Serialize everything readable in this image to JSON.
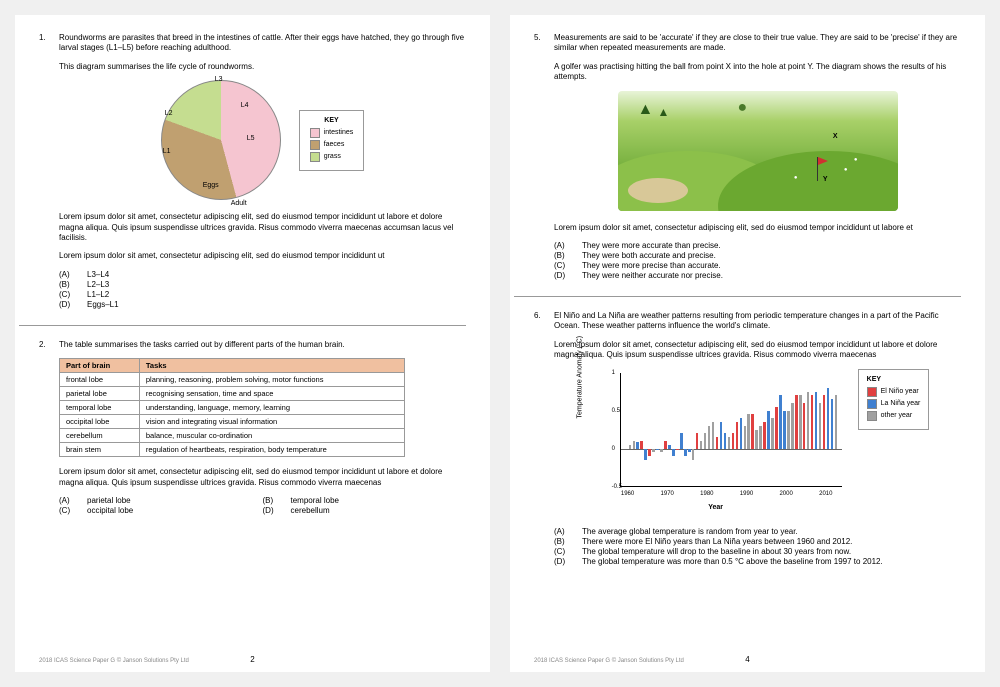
{
  "footer": {
    "copyright": "2018 ICAS Science Paper G © Janson Solutions Pty Ltd",
    "page_left": "2",
    "page_right": "4"
  },
  "q1": {
    "num": "1.",
    "intro": "Roundworms are parasites that breed in the intestines of cattle. After their eggs have hatched, they go through five larval stages (L1–L5) before reaching adulthood.",
    "caption": "This diagram summarises the life cycle of roundworms.",
    "pie": {
      "slices": [
        {
          "color": "#f5c5d0",
          "deg_end": 165,
          "label": "intestines"
        },
        {
          "color": "#c0a070",
          "deg_end": 290,
          "label": "faeces"
        },
        {
          "color": "#c5dd90",
          "deg_end": 360,
          "label": "grass"
        }
      ],
      "labels": [
        "L3",
        "L4",
        "L5",
        "Adult",
        "Eggs",
        "L1",
        "L2"
      ],
      "key_title": "KEY"
    },
    "lorem1": "Lorem ipsum dolor sit amet, consectetur adipiscing elit, sed do eiusmod tempor incididunt ut labore et dolore magna aliqua. Quis ipsum suspendisse ultrices gravida. Risus commodo viverra maecenas accumsan lacus vel facilisis.",
    "lorem2": "Lorem ipsum dolor sit amet, consectetur adipiscing elit, sed do eiusmod tempor incididunt ut",
    "opts": [
      {
        "l": "(A)",
        "t": "L3–L4"
      },
      {
        "l": "(B)",
        "t": "L2–L3"
      },
      {
        "l": "(C)",
        "t": "L1–L2"
      },
      {
        "l": "(D)",
        "t": "Eggs–L1"
      }
    ]
  },
  "q2": {
    "num": "2.",
    "intro": "The table summarises the tasks carried out by different parts of the human brain.",
    "headers": [
      "Part of brain",
      "Tasks"
    ],
    "rows": [
      [
        "frontal lobe",
        "planning, reasoning, problem solving, motor functions"
      ],
      [
        "parietal lobe",
        "recognising sensation, time and space"
      ],
      [
        "temporal lobe",
        "understanding, language, memory, learning"
      ],
      [
        "occipital lobe",
        "vision and integrating visual information"
      ],
      [
        "cerebellum",
        "balance, muscular co-ordination"
      ],
      [
        "brain stem",
        "regulation of heartbeats, respiration, body temperature"
      ]
    ],
    "lorem": "Lorem ipsum dolor sit amet, consectetur adipiscing elit, sed do eiusmod tempor incididunt ut labore et dolore magna aliqua. Quis ipsum suspendisse ultrices gravida. Risus commodo viverra maecenas",
    "opts": [
      {
        "l": "(A)",
        "t": "parietal lobe"
      },
      {
        "l": "(B)",
        "t": "temporal lobe"
      },
      {
        "l": "(C)",
        "t": "occipital lobe"
      },
      {
        "l": "(D)",
        "t": "cerebellum"
      }
    ]
  },
  "q5": {
    "num": "5.",
    "intro": "Measurements are said to be 'accurate' if they are close to their true value. They are said to be 'precise' if they are similar when repeated measurements are made.",
    "caption": "A golfer was practising hitting the ball from point X into the hole at point Y. The diagram shows the results of his attempts.",
    "lorem": "Lorem ipsum dolor sit amet, consectetur adipiscing elit, sed do eiusmod tempor incididunt ut labore et",
    "opts": [
      {
        "l": "(A)",
        "t": "They were more accurate than precise."
      },
      {
        "l": "(B)",
        "t": "They were both accurate and precise."
      },
      {
        "l": "(C)",
        "t": "They were more precise than accurate."
      },
      {
        "l": "(D)",
        "t": "They were neither accurate nor precise."
      }
    ]
  },
  "q6": {
    "num": "6.",
    "intro": "El Niño and La Niña are weather patterns resulting from periodic temperature changes in a part of the Pacific Ocean. These weather patterns influence the world's climate.",
    "lorem": "Lorem ipsum dolor sit amet, consectetur adipiscing elit, sed do eiusmod tempor incididunt ut labore et dolore magna aliqua. Quis ipsum suspendisse ultrices gravida. Risus commodo viverra maecenas",
    "chart": {
      "ylabel": "Temperature Anomaly (°C)",
      "xlabel": "Year",
      "ylim": [
        -0.5,
        1.0
      ],
      "yticks": [
        -0.5,
        0,
        0.5,
        1
      ],
      "xlim": [
        1958,
        2014
      ],
      "xticks": [
        1960,
        1970,
        1980,
        1990,
        2000,
        2010
      ],
      "colors": {
        "elnino": "#e04040",
        "lanina": "#4080d0",
        "other": "#a0a0a0"
      },
      "key_title": "KEY",
      "series_labels": [
        "El Niño year",
        "La Niña year",
        "other year"
      ],
      "bars": [
        {
          "y": 1960,
          "v": 0.05,
          "c": "other"
        },
        {
          "y": 1961,
          "v": 0.1,
          "c": "other"
        },
        {
          "y": 1962,
          "v": 0.08,
          "c": "lanina"
        },
        {
          "y": 1963,
          "v": 0.1,
          "c": "elnino"
        },
        {
          "y": 1964,
          "v": -0.15,
          "c": "lanina"
        },
        {
          "y": 1965,
          "v": -0.1,
          "c": "elnino"
        },
        {
          "y": 1966,
          "v": -0.05,
          "c": "other"
        },
        {
          "y": 1967,
          "v": 0.0,
          "c": "lanina"
        },
        {
          "y": 1968,
          "v": -0.05,
          "c": "other"
        },
        {
          "y": 1969,
          "v": 0.1,
          "c": "elnino"
        },
        {
          "y": 1970,
          "v": 0.05,
          "c": "lanina"
        },
        {
          "y": 1971,
          "v": -0.1,
          "c": "lanina"
        },
        {
          "y": 1972,
          "v": 0.0,
          "c": "elnino"
        },
        {
          "y": 1973,
          "v": 0.2,
          "c": "lanina"
        },
        {
          "y": 1974,
          "v": -0.1,
          "c": "lanina"
        },
        {
          "y": 1975,
          "v": -0.05,
          "c": "lanina"
        },
        {
          "y": 1976,
          "v": -0.15,
          "c": "other"
        },
        {
          "y": 1977,
          "v": 0.2,
          "c": "elnino"
        },
        {
          "y": 1978,
          "v": 0.1,
          "c": "other"
        },
        {
          "y": 1979,
          "v": 0.2,
          "c": "other"
        },
        {
          "y": 1980,
          "v": 0.3,
          "c": "other"
        },
        {
          "y": 1981,
          "v": 0.35,
          "c": "other"
        },
        {
          "y": 1982,
          "v": 0.15,
          "c": "elnino"
        },
        {
          "y": 1983,
          "v": 0.35,
          "c": "lanina"
        },
        {
          "y": 1984,
          "v": 0.2,
          "c": "lanina"
        },
        {
          "y": 1985,
          "v": 0.15,
          "c": "other"
        },
        {
          "y": 1986,
          "v": 0.2,
          "c": "elnino"
        },
        {
          "y": 1987,
          "v": 0.35,
          "c": "elnino"
        },
        {
          "y": 1988,
          "v": 0.4,
          "c": "lanina"
        },
        {
          "y": 1989,
          "v": 0.3,
          "c": "other"
        },
        {
          "y": 1990,
          "v": 0.45,
          "c": "other"
        },
        {
          "y": 1991,
          "v": 0.45,
          "c": "elnino"
        },
        {
          "y": 1992,
          "v": 0.25,
          "c": "other"
        },
        {
          "y": 1993,
          "v": 0.3,
          "c": "other"
        },
        {
          "y": 1994,
          "v": 0.35,
          "c": "elnino"
        },
        {
          "y": 1995,
          "v": 0.5,
          "c": "lanina"
        },
        {
          "y": 1996,
          "v": 0.4,
          "c": "other"
        },
        {
          "y": 1997,
          "v": 0.55,
          "c": "elnino"
        },
        {
          "y": 1998,
          "v": 0.7,
          "c": "lanina"
        },
        {
          "y": 1999,
          "v": 0.5,
          "c": "lanina"
        },
        {
          "y": 2000,
          "v": 0.5,
          "c": "other"
        },
        {
          "y": 2001,
          "v": 0.6,
          "c": "other"
        },
        {
          "y": 2002,
          "v": 0.7,
          "c": "elnino"
        },
        {
          "y": 2003,
          "v": 0.7,
          "c": "other"
        },
        {
          "y": 2004,
          "v": 0.6,
          "c": "elnino"
        },
        {
          "y": 2005,
          "v": 0.75,
          "c": "other"
        },
        {
          "y": 2006,
          "v": 0.7,
          "c": "elnino"
        },
        {
          "y": 2007,
          "v": 0.75,
          "c": "lanina"
        },
        {
          "y": 2008,
          "v": 0.6,
          "c": "other"
        },
        {
          "y": 2009,
          "v": 0.7,
          "c": "elnino"
        },
        {
          "y": 2010,
          "v": 0.8,
          "c": "lanina"
        },
        {
          "y": 2011,
          "v": 0.65,
          "c": "lanina"
        },
        {
          "y": 2012,
          "v": 0.7,
          "c": "other"
        }
      ]
    },
    "opts": [
      {
        "l": "(A)",
        "t": "The average global temperature is random from year to year."
      },
      {
        "l": "(B)",
        "t": "There were more El Niño years than La Niña years between 1960 and 2012."
      },
      {
        "l": "(C)",
        "t": "The global temperature will drop to the baseline in about 30 years from now."
      },
      {
        "l": "(D)",
        "t": "The global temperature was more than 0.5 °C above the baseline from 1997 to 2012."
      }
    ]
  }
}
